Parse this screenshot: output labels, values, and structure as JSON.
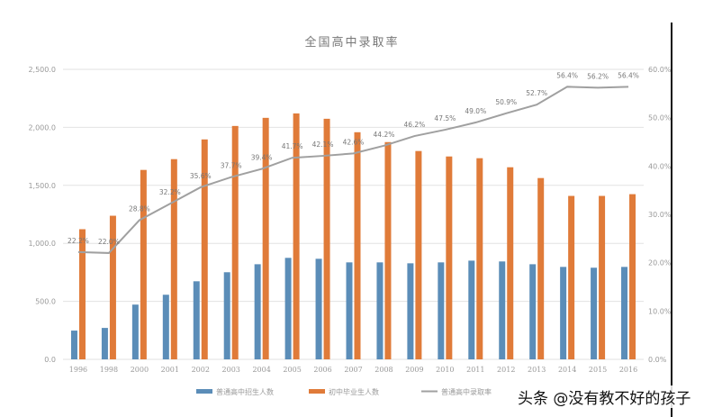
{
  "chart_data": {
    "type": "bar",
    "title": "全国高中录取率",
    "categories": [
      "1996",
      "1998",
      "2000",
      "2001",
      "2002",
      "2003",
      "2004",
      "2005",
      "2006",
      "2007",
      "2008",
      "2009",
      "2010",
      "2011",
      "2012",
      "2013",
      "2014",
      "2015",
      "2016"
    ],
    "series": [
      {
        "name": "普通高中招生人数",
        "type": "bar",
        "axis": "left",
        "color": "#5b8db8",
        "values": [
          248,
          271,
          472,
          557,
          673,
          751,
          820,
          875,
          867,
          836,
          836,
          828,
          836,
          851,
          844,
          820,
          797,
          790,
          797
        ]
      },
      {
        "name": "初中毕业生人数",
        "type": "bar",
        "axis": "left",
        "color": "#e07b39",
        "values": [
          1122,
          1238,
          1633,
          1726,
          1896,
          2012,
          2082,
          2120,
          2074,
          1958,
          1873,
          1796,
          1749,
          1734,
          1656,
          1563,
          1409,
          1409,
          1424
        ]
      },
      {
        "name": "普通高中录取率",
        "type": "line",
        "axis": "right",
        "color": "#a0a0a0",
        "values": [
          22.2,
          22.0,
          28.8,
          32.2,
          35.6,
          37.7,
          39.4,
          41.7,
          42.1,
          42.6,
          44.2,
          46.2,
          47.5,
          49.0,
          50.9,
          52.7,
          56.4,
          56.2,
          56.4
        ],
        "labels": [
          "22.2%",
          "22.0%",
          "28.8%",
          "32.2%",
          "35.6%",
          "37.7%",
          "39.4%",
          "41.7%",
          "42.1%",
          "42.6%",
          "44.2%",
          "46.2%",
          "47.5%",
          "49.0%",
          "50.9%",
          "52.7%",
          "56.4%",
          "56.2%",
          "56.4%"
        ]
      }
    ],
    "ylim": [
      0,
      2500
    ],
    "y_ticks": [
      "0.0",
      "500.0",
      "1,000.0",
      "1,500.0",
      "2,000.0",
      "2,500.0"
    ],
    "y2lim": [
      0,
      60
    ],
    "y2_ticks": [
      "0.0%",
      "10.0%",
      "20.0%",
      "30.0%",
      "40.0%",
      "50.0%",
      "60.0%"
    ],
    "grid": true,
    "legend": "bottom"
  },
  "watermark": "头条 @没有教不好的孩子"
}
